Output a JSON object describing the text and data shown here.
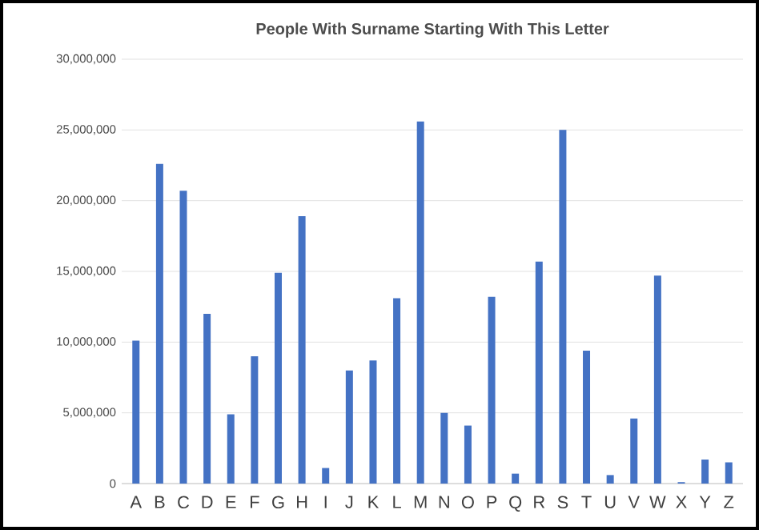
{
  "chart_data": {
    "type": "bar",
    "title": "People With Surname Starting With This Letter",
    "categories": [
      "A",
      "B",
      "C",
      "D",
      "E",
      "F",
      "G",
      "H",
      "I",
      "J",
      "K",
      "L",
      "M",
      "N",
      "O",
      "P",
      "Q",
      "R",
      "S",
      "T",
      "U",
      "V",
      "W",
      "X",
      "Y",
      "Z"
    ],
    "values": [
      10100000,
      22600000,
      20700000,
      12000000,
      4900000,
      9000000,
      14900000,
      18900000,
      1100000,
      8000000,
      8700000,
      13100000,
      25600000,
      5000000,
      4100000,
      13200000,
      700000,
      15700000,
      25000000,
      9400000,
      600000,
      4600000,
      14700000,
      100000,
      1700000,
      1500000
    ],
    "color": "#4472c4",
    "ylim": [
      0,
      30000000
    ],
    "yticks": [
      0,
      {
        "value": 5000000,
        "label": "5,000,000"
      },
      {
        "value": 10000000,
        "label": "10,000,000"
      },
      {
        "value": 15000000,
        "label": "15,000,000"
      },
      {
        "value": 20000000,
        "label": "20,000,000"
      },
      {
        "value": 25000000,
        "label": "25,000,000"
      },
      {
        "value": 30000000,
        "label": "30,000,000"
      }
    ],
    "grid": "y"
  }
}
